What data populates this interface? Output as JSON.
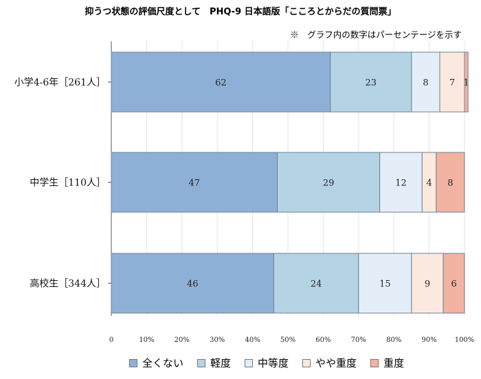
{
  "chart_data": {
    "type": "bar",
    "orientation": "horizontal",
    "stacked": true,
    "title": "抑うつ状態の評価尺度として　PHQ-9 日本語版「こころとからだの質問票」",
    "note": "※　グラフ内の数字はパーセンテージを示す",
    "categories": [
      "小学4-6年［261人］",
      "中学生［110人］",
      "高校生［344人］"
    ],
    "series": [
      {
        "name": "全くない",
        "color": "#8fb0d6",
        "values": [
          62,
          47,
          46
        ]
      },
      {
        "name": "軽度",
        "color": "#b4d4e6",
        "values": [
          23,
          29,
          24
        ]
      },
      {
        "name": "中等度",
        "color": "#e4eef8",
        "values": [
          8,
          12,
          15
        ]
      },
      {
        "name": "やや重度",
        "color": "#fbe9df",
        "values": [
          7,
          4,
          9
        ]
      },
      {
        "name": "重度",
        "color": "#f2b3a2",
        "values": [
          1,
          8,
          6
        ]
      }
    ],
    "xlim": [
      0,
      100
    ],
    "xticks": [
      "0",
      "10%",
      "20%",
      "30%",
      "40%",
      "50%",
      "60%",
      "70%",
      "80%",
      "90%",
      "100%"
    ],
    "legend_position": "bottom",
    "grid": true
  }
}
